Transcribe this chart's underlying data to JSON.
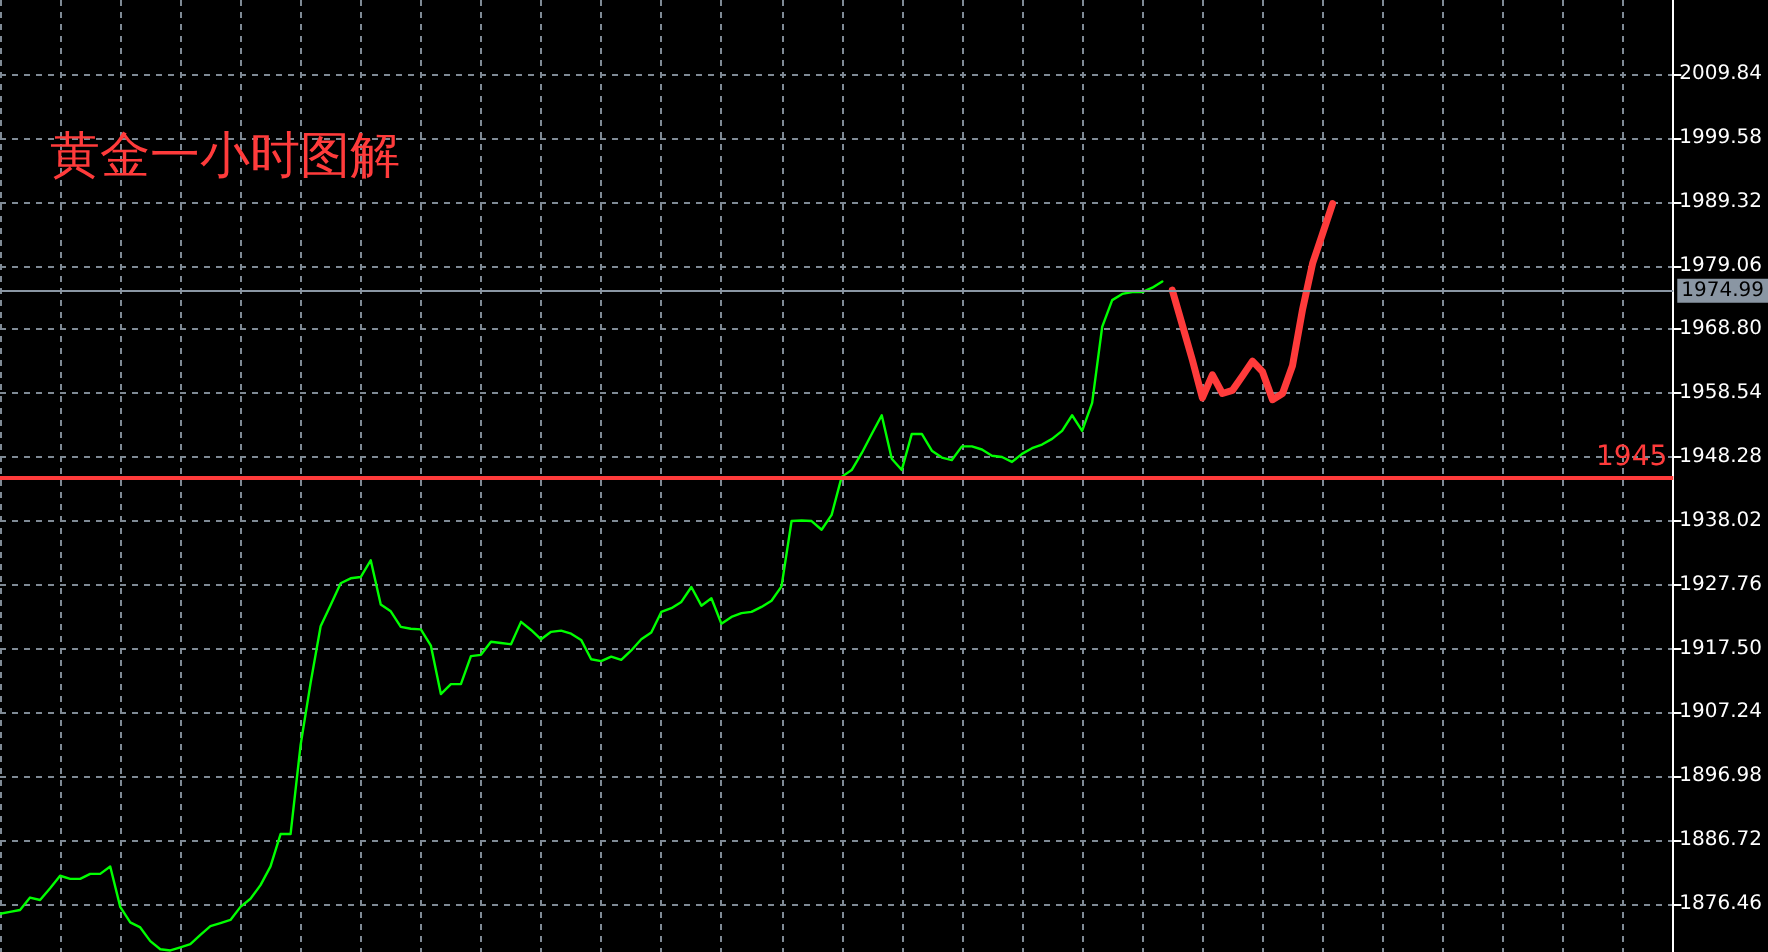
{
  "chart_data": {
    "type": "line",
    "title": "黄金一小时图解",
    "categories": [
      null,
      null,
      null,
      null,
      null,
      null,
      null,
      null,
      null,
      null,
      null,
      null,
      null,
      null,
      null,
      null,
      null,
      null,
      null,
      null,
      null,
      null,
      null,
      null,
      null,
      null,
      null,
      null,
      null,
      null,
      null,
      null,
      null,
      null,
      null,
      null,
      null,
      null,
      null,
      null,
      null,
      null,
      null,
      null,
      null,
      null,
      null,
      null,
      null,
      null,
      null,
      null,
      null,
      null,
      null,
      null,
      null,
      null,
      null,
      null,
      null,
      null,
      null,
      null,
      null,
      null,
      null,
      null,
      null,
      null,
      null,
      null,
      null,
      null,
      null,
      null,
      null,
      null,
      null,
      null,
      null,
      null,
      null,
      null,
      null,
      null,
      null,
      null,
      null,
      null,
      null,
      null,
      null,
      null,
      null,
      null,
      null,
      null,
      null,
      null,
      null,
      null,
      null,
      null,
      null,
      null,
      null,
      null,
      null,
      null,
      null,
      null,
      null,
      null,
      null,
      null,
      null,
      null,
      null,
      null,
      null,
      null,
      null,
      null,
      null,
      null,
      null,
      null,
      null,
      null,
      null,
      null,
      null,
      null,
      null,
      null,
      null,
      null,
      null,
      null,
      null,
      null,
      null,
      null,
      null,
      null,
      null,
      null,
      null,
      null,
      null,
      null,
      null,
      null,
      null,
      null,
      null,
      null,
      null,
      null,
      null,
      null,
      null,
      null,
      null,
      null,
      null,
      null
    ],
    "series": [
      {
        "color": "#00ff00",
        "values": [
          1874.9,
          1875.2,
          1875.5,
          1877.5,
          1877.1,
          1879,
          1881,
          1880.5,
          1880.5,
          1881.3,
          1881.3,
          1882.5,
          1876,
          1873.5,
          1872.7,
          1870.5,
          1869.2,
          1869,
          1869.5,
          1870,
          1871.5,
          1872.9,
          1873.4,
          1873.9,
          1876,
          1877.3,
          1879.5,
          1882.5,
          1887.7,
          1887.7,
          1902,
          1912,
          1921.1,
          1924.5,
          1928,
          1928.8,
          1929,
          1931.7,
          1924.6,
          1923.5,
          1921,
          1920.7,
          1920.6,
          1918,
          1910.2,
          1911.8,
          1911.8,
          1916.3,
          1916.5,
          1918.6,
          1918.4,
          1918.2,
          1921.8,
          1920.5,
          1919,
          1920.2,
          1920.4,
          1919.9,
          1918.9,
          1915.8,
          1915.5,
          1916.2,
          1915.7,
          1917.2,
          1919,
          1920.1,
          1923.4,
          1924,
          1925,
          1927.4,
          1924.4,
          1925.6,
          1921.5,
          1922.6,
          1923.2,
          1923.4,
          1924.2,
          1925.2,
          1927.5,
          1938,
          1938.1,
          1938,
          1936.6,
          1939,
          1945.1,
          1946.2,
          1948.9,
          1952,
          1955,
          1948,
          1946.2,
          1952,
          1952,
          1949.3,
          1948.2,
          1947.8,
          1950,
          1950,
          1949.5,
          1948.5,
          1948.3,
          1947.5,
          1948.8,
          1949.7,
          1950.3,
          1951.2,
          1952.5,
          1955,
          1952.5,
          1957,
          1969.2,
          1973.5,
          1974.5,
          1974.8,
          1974.8,
          1975.5,
          1976.5,
          null,
          null,
          null,
          null,
          null,
          null,
          null,
          null,
          null,
          null,
          null,
          null,
          null,
          null,
          null,
          null,
          null,
          null,
          null,
          null,
          null,
          null,
          null,
          null,
          null,
          null,
          null,
          null,
          null,
          null,
          null,
          null,
          null,
          null,
          null,
          null,
          null,
          null,
          null,
          null,
          null,
          null,
          null,
          null,
          null,
          null,
          null,
          null,
          null,
          null,
          null
        ]
      },
      {
        "color": "#ff3b3b",
        "values": [
          null,
          null,
          null,
          null,
          null,
          null,
          null,
          null,
          null,
          null,
          null,
          null,
          null,
          null,
          null,
          null,
          null,
          null,
          null,
          null,
          null,
          null,
          null,
          null,
          null,
          null,
          null,
          null,
          null,
          null,
          null,
          null,
          null,
          null,
          null,
          null,
          null,
          null,
          null,
          null,
          null,
          null,
          null,
          null,
          null,
          null,
          null,
          null,
          null,
          null,
          null,
          null,
          null,
          null,
          null,
          null,
          null,
          null,
          null,
          null,
          null,
          null,
          null,
          null,
          null,
          null,
          null,
          null,
          null,
          null,
          null,
          null,
          null,
          null,
          null,
          null,
          null,
          null,
          null,
          null,
          null,
          null,
          null,
          null,
          null,
          null,
          null,
          null,
          null,
          null,
          null,
          null,
          null,
          null,
          null,
          null,
          null,
          null,
          null,
          null,
          null,
          null,
          null,
          null,
          null,
          null,
          null,
          null,
          null,
          null,
          null,
          null,
          null,
          null,
          null,
          null,
          null,
          1975.1,
          1969.5,
          1963.9,
          1957.8,
          1961.5,
          1958.5,
          1959,
          1961.3,
          1963.7,
          1962,
          1957.5,
          1958.5,
          1963,
          1972,
          1979.4,
          1984.2,
          1989,
          null,
          null,
          null,
          null,
          null,
          null,
          null,
          null,
          null,
          null,
          null,
          null,
          null,
          null,
          null,
          null,
          null,
          null,
          null,
          null,
          null,
          null,
          null,
          null,
          null,
          null,
          null,
          null,
          null,
          null,
          null,
          null,
          null,
          null
        ]
      }
    ],
    "ylim": [
      1868.75,
      2021.73
    ],
    "yticks": [
      1876.46,
      1886.72,
      1896.98,
      1907.24,
      {
        "value": 1917.5,
        "label": "1917.50"
      },
      1927.76,
      1938.02,
      1948.28,
      1958.54,
      {
        "value": 1968.8,
        "label": "1968.80"
      },
      1979.06,
      1989.32,
      1999.58,
      2009.84
    ],
    "grid": true,
    "line_style": "solid",
    "ref_lines": [
      {
        "axis": "y",
        "value": 1974.99,
        "label": "1974.99",
        "color": "#8a96a3"
      },
      {
        "axis": "y",
        "value": 1945,
        "label": "1945",
        "color": "#ff3b3b"
      }
    ]
  }
}
